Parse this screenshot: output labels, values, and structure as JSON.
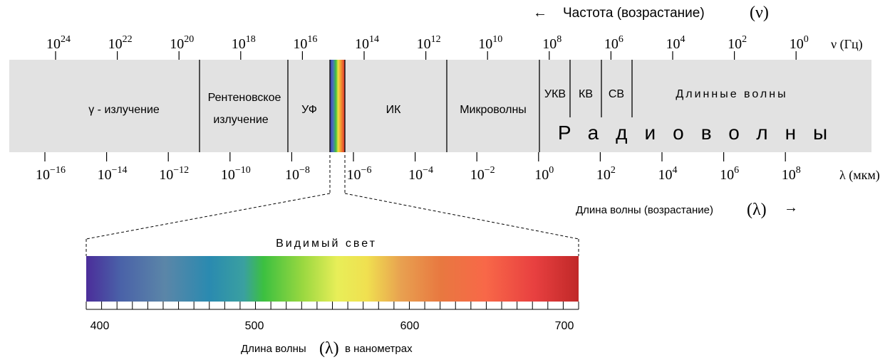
{
  "freq_header": {
    "arrow": "←",
    "text": "Частота (возрастание)",
    "symbol": "(ν)"
  },
  "freq_axis": {
    "unit": "ν (Гц)",
    "ticks": [
      {
        "base": "10",
        "exp": "24"
      },
      {
        "base": "10",
        "exp": "22"
      },
      {
        "base": "10",
        "exp": "20"
      },
      {
        "base": "10",
        "exp": "18"
      },
      {
        "base": "10",
        "exp": "16"
      },
      {
        "base": "10",
        "exp": "14"
      },
      {
        "base": "10",
        "exp": "12"
      },
      {
        "base": "10",
        "exp": "10"
      },
      {
        "base": "10",
        "exp": "8"
      },
      {
        "base": "10",
        "exp": "6"
      },
      {
        "base": "10",
        "exp": "4"
      },
      {
        "base": "10",
        "exp": "2"
      },
      {
        "base": "10",
        "exp": "0"
      }
    ]
  },
  "wave_axis": {
    "unit": "λ (мкм)",
    "ticks": [
      {
        "base": "10",
        "exp": "−16"
      },
      {
        "base": "10",
        "exp": "−14"
      },
      {
        "base": "10",
        "exp": "−12"
      },
      {
        "base": "10",
        "exp": "−10"
      },
      {
        "base": "10",
        "exp": "−8"
      },
      {
        "base": "10",
        "exp": "−6"
      },
      {
        "base": "10",
        "exp": "−4"
      },
      {
        "base": "10",
        "exp": "−2"
      },
      {
        "base": "10",
        "exp": "0"
      },
      {
        "base": "10",
        "exp": "2"
      },
      {
        "base": "10",
        "exp": "4"
      },
      {
        "base": "10",
        "exp": "6"
      },
      {
        "base": "10",
        "exp": "8"
      }
    ]
  },
  "bands": {
    "gamma": "γ - излучение",
    "xray_line1": "Рентеновское",
    "xray_line2": "излучение",
    "uv": "УФ",
    "ir": "ИК",
    "micro": "Микроволны",
    "vhf": "УКВ",
    "hf": "КВ",
    "mf": "СВ",
    "long": "Длинные волны",
    "radio": "Радиоволны"
  },
  "wave_footer": {
    "text": "Длина волны (возрастание)",
    "symbol": "(λ)",
    "arrow": "→"
  },
  "visible": {
    "title": "Видимый свет",
    "ticks": [
      "400",
      "500",
      "600",
      "700"
    ],
    "xlabel_pre": "Длина волны",
    "xlabel_symbol": "(λ)",
    "xlabel_post": "в нанометрах"
  },
  "colors": {
    "band_bg": "#e2e2e2",
    "divider": "#000000",
    "spectrum": [
      "#4b2d9a",
      "#4a62a8",
      "#5b86a8",
      "#2a8ab0",
      "#3aa0a0",
      "#3cc040",
      "#9ad840",
      "#e8ee58",
      "#f0e050",
      "#e8a050",
      "#e87840",
      "#f86848",
      "#e84040",
      "#c02828"
    ]
  }
}
